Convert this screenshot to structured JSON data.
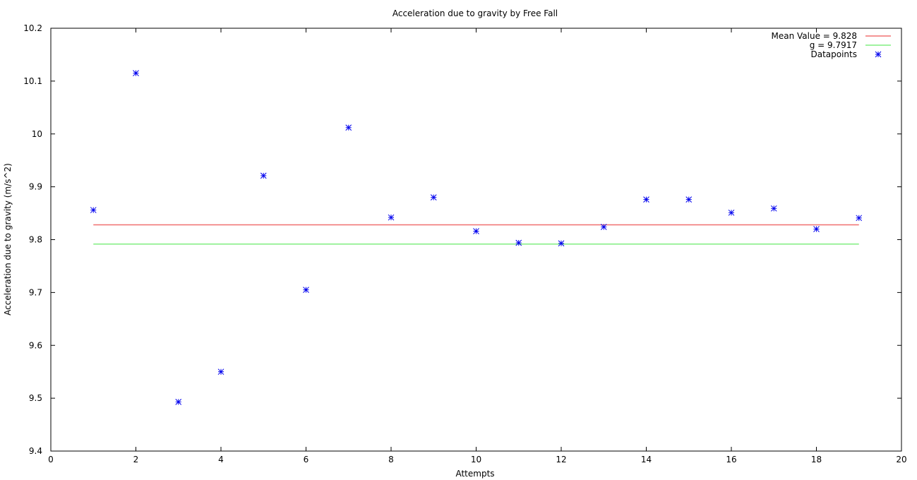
{
  "chart_data": {
    "type": "scatter",
    "title": "Acceleration due to gravity by Free Fall",
    "xlabel": "Attempts",
    "ylabel": "Acceleration due to gravity (m/s^2)",
    "xlim": [
      0,
      20
    ],
    "ylim": [
      9.4,
      10.2
    ],
    "xticks": [
      0,
      2,
      4,
      6,
      8,
      10,
      12,
      14,
      16,
      18,
      20
    ],
    "yticks": [
      9.4,
      9.5,
      9.6,
      9.7,
      9.8,
      9.9,
      10,
      10.1,
      10.2
    ],
    "xtick_labels": [
      "0",
      "2",
      "4",
      "6",
      "8",
      "10",
      "12",
      "14",
      "16",
      "18",
      "20"
    ],
    "ytick_labels": [
      "9.4",
      "9.5",
      "9.6",
      "9.7",
      "9.8",
      "9.9",
      "10",
      "10.1",
      "10.2"
    ],
    "grid": false,
    "legend_position": "top-right",
    "series": [
      {
        "name": "Mean Value = 9.828",
        "kind": "line",
        "color": "#f07070",
        "x": [
          1,
          19
        ],
        "y": [
          9.828,
          9.828
        ]
      },
      {
        "name": "g = 9.7917",
        "kind": "line",
        "color": "#80ee80",
        "x": [
          1,
          19
        ],
        "y": [
          9.7917,
          9.7917
        ]
      },
      {
        "name": "Datapoints",
        "kind": "points",
        "marker": "asterisk",
        "color": "#0000ee",
        "x": [
          1,
          2,
          3,
          4,
          5,
          6,
          7,
          8,
          9,
          10,
          11,
          12,
          13,
          14,
          15,
          16,
          17,
          18,
          19
        ],
        "y": [
          9.856,
          10.115,
          9.493,
          9.55,
          9.921,
          9.705,
          10.012,
          9.842,
          9.88,
          9.816,
          9.794,
          9.793,
          9.824,
          9.876,
          9.876,
          9.851,
          9.859,
          9.82,
          9.841
        ]
      }
    ]
  }
}
